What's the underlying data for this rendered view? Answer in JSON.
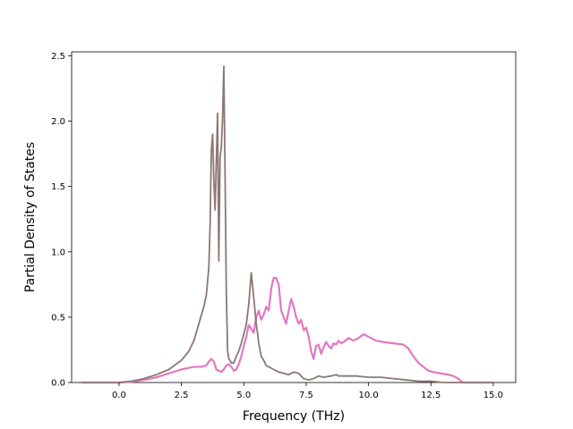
{
  "chart_data": {
    "type": "line",
    "xlabel": "Frequency (THz)",
    "ylabel": "Partial Density of States",
    "xlim": [
      -1.9,
      15.9
    ],
    "ylim": [
      0,
      2.53
    ],
    "xticks": [
      0.0,
      2.5,
      5.0,
      7.5,
      10.0,
      12.5,
      15.0
    ],
    "xtick_labels": [
      "0.0",
      "2.5",
      "5.0",
      "7.5",
      "10.0",
      "12.5",
      "15.0"
    ],
    "yticks": [
      0.0,
      0.5,
      1.0,
      1.5,
      2.0,
      2.5
    ],
    "ytick_labels": [
      "0.0",
      "0.5",
      "1.0",
      "1.5",
      "2.0",
      "2.5"
    ],
    "grid": false,
    "legend": "none",
    "series": [
      {
        "color": "#e377c2",
        "x": [
          -1.5,
          0.0,
          0.5,
          1.0,
          1.5,
          2.0,
          2.5,
          3.0,
          3.3,
          3.5,
          3.6,
          3.7,
          3.8,
          3.9,
          4.0,
          4.1,
          4.2,
          4.3,
          4.4,
          4.5,
          4.6,
          4.7,
          4.8,
          4.9,
          5.0,
          5.1,
          5.2,
          5.3,
          5.4,
          5.5,
          5.6,
          5.7,
          5.8,
          5.9,
          6.0,
          6.1,
          6.2,
          6.3,
          6.4,
          6.5,
          6.6,
          6.7,
          6.8,
          6.9,
          7.0,
          7.1,
          7.2,
          7.3,
          7.4,
          7.5,
          7.6,
          7.7,
          7.8,
          7.9,
          8.0,
          8.1,
          8.2,
          8.3,
          8.4,
          8.5,
          8.6,
          8.7,
          8.8,
          8.9,
          9.0,
          9.2,
          9.4,
          9.6,
          9.8,
          10.0,
          10.3,
          10.6,
          11.0,
          11.4,
          11.6,
          11.8,
          12.0,
          12.2,
          12.4,
          12.6,
          12.9,
          13.2,
          13.4,
          13.6,
          13.7,
          13.8,
          14.5,
          15.0
        ],
        "y": [
          0.0,
          0.0,
          0.005,
          0.02,
          0.04,
          0.07,
          0.1,
          0.12,
          0.12,
          0.13,
          0.16,
          0.18,
          0.16,
          0.1,
          0.09,
          0.08,
          0.1,
          0.13,
          0.14,
          0.12,
          0.09,
          0.1,
          0.14,
          0.2,
          0.28,
          0.35,
          0.44,
          0.41,
          0.38,
          0.5,
          0.55,
          0.48,
          0.52,
          0.58,
          0.55,
          0.72,
          0.8,
          0.8,
          0.75,
          0.55,
          0.5,
          0.45,
          0.55,
          0.64,
          0.58,
          0.5,
          0.45,
          0.48,
          0.4,
          0.42,
          0.35,
          0.24,
          0.18,
          0.28,
          0.29,
          0.22,
          0.27,
          0.31,
          0.28,
          0.26,
          0.3,
          0.29,
          0.32,
          0.3,
          0.31,
          0.34,
          0.32,
          0.34,
          0.37,
          0.35,
          0.32,
          0.31,
          0.3,
          0.29,
          0.26,
          0.2,
          0.15,
          0.12,
          0.09,
          0.08,
          0.07,
          0.06,
          0.05,
          0.03,
          0.01,
          0.0,
          0.0,
          0.0
        ]
      },
      {
        "color": "#8c7872",
        "x": [
          -1.5,
          0.0,
          0.5,
          1.0,
          1.5,
          2.0,
          2.5,
          2.8,
          3.0,
          3.2,
          3.4,
          3.5,
          3.6,
          3.65,
          3.7,
          3.75,
          3.8,
          3.85,
          3.9,
          3.95,
          4.0,
          4.05,
          4.1,
          4.15,
          4.2,
          4.25,
          4.3,
          4.35,
          4.4,
          4.45,
          4.5,
          4.6,
          4.7,
          4.8,
          4.9,
          5.0,
          5.1,
          5.2,
          5.3,
          5.4,
          5.5,
          5.55,
          5.6,
          5.7,
          5.8,
          5.9,
          6.0,
          6.2,
          6.4,
          6.6,
          6.8,
          7.0,
          7.2,
          7.4,
          7.6,
          7.8,
          8.0,
          8.2,
          8.5,
          8.7,
          8.8,
          9.0,
          9.5,
          10.0,
          10.5,
          11.0,
          11.5,
          12.0,
          12.5,
          13.0,
          13.5,
          13.7,
          14.5,
          15.0
        ],
        "y": [
          0.0,
          0.0,
          0.01,
          0.03,
          0.06,
          0.1,
          0.17,
          0.24,
          0.32,
          0.45,
          0.58,
          0.67,
          0.88,
          1.2,
          1.77,
          1.9,
          1.55,
          1.32,
          1.7,
          2.06,
          0.93,
          1.72,
          1.8,
          2.02,
          2.42,
          1.6,
          0.7,
          0.25,
          0.18,
          0.17,
          0.15,
          0.15,
          0.2,
          0.24,
          0.3,
          0.37,
          0.44,
          0.6,
          0.84,
          0.65,
          0.45,
          0.38,
          0.3,
          0.2,
          0.17,
          0.13,
          0.12,
          0.1,
          0.08,
          0.07,
          0.06,
          0.08,
          0.07,
          0.03,
          0.02,
          0.03,
          0.05,
          0.04,
          0.05,
          0.06,
          0.05,
          0.05,
          0.05,
          0.04,
          0.04,
          0.03,
          0.02,
          0.01,
          0.01,
          0.0,
          0.0,
          0.0,
          0.0,
          0.0
        ]
      }
    ]
  }
}
